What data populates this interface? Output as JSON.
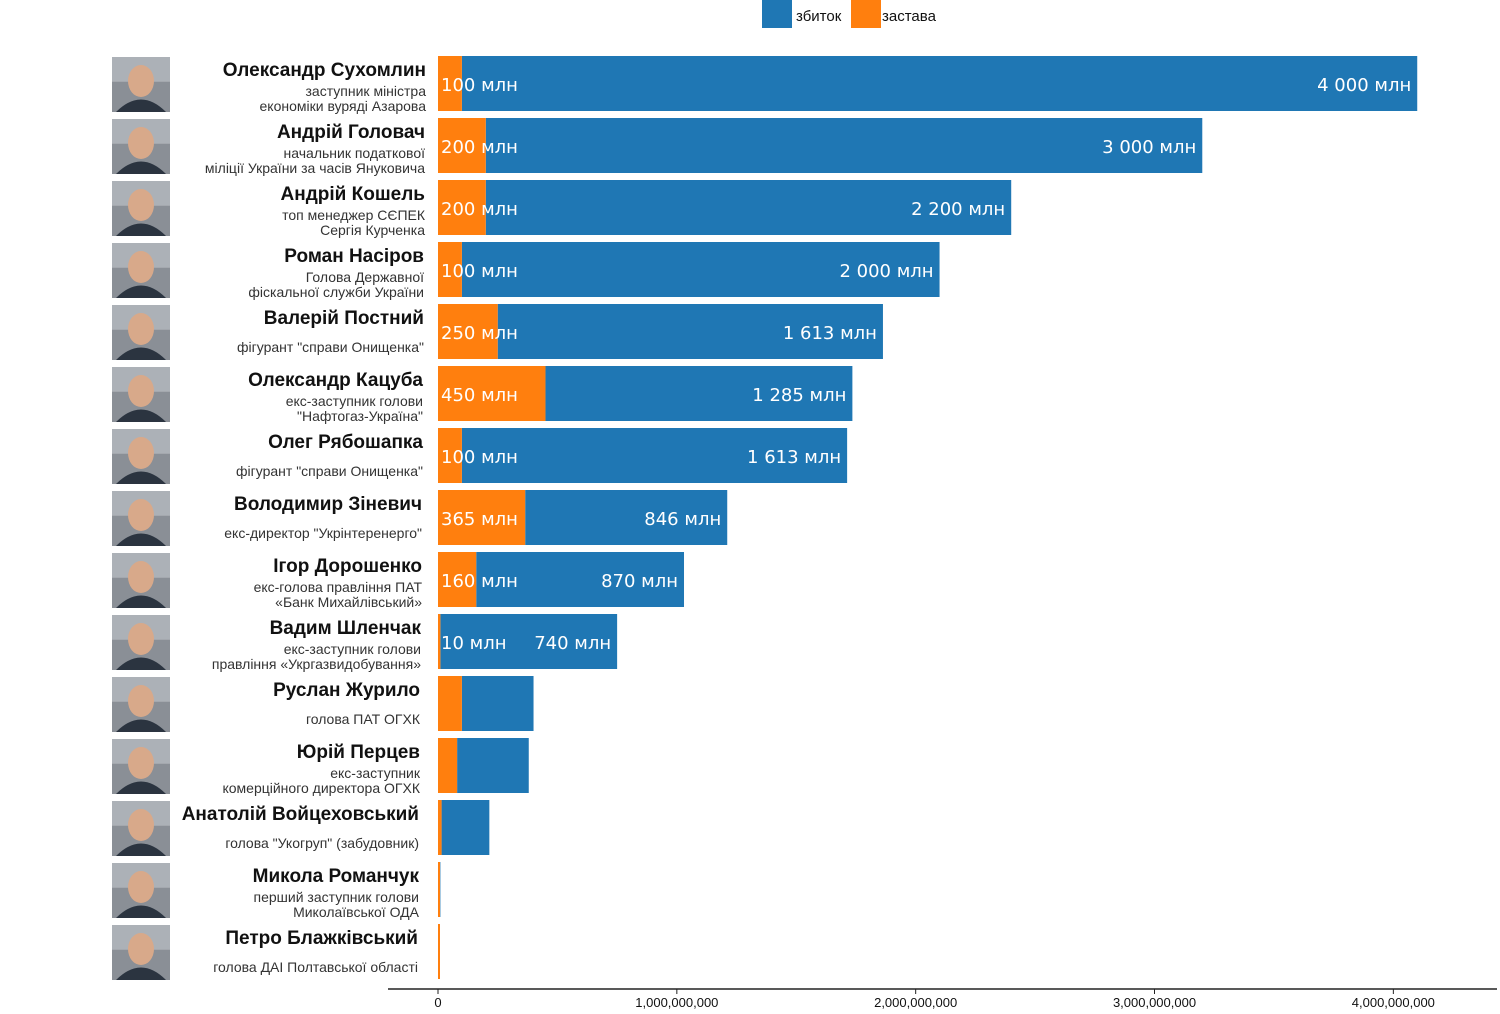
{
  "colors": {
    "loss": "#1f77b4",
    "bail": "#ff7f0e",
    "axis": "#222222"
  },
  "chart_data": {
    "type": "bar",
    "orientation": "horizontal",
    "stacked": true,
    "legend": {
      "placement": "top-center",
      "entries": [
        {
          "name": "збиток",
          "color": "#1f77b4"
        },
        {
          "name": "застава",
          "color": "#ff7f0e"
        }
      ]
    },
    "xlim": [
      0,
      4300000000
    ],
    "xticks": [
      {
        "value": 0,
        "label": "0"
      },
      {
        "value": 1000000000,
        "label": "1,000,000,000"
      },
      {
        "value": 2000000000,
        "label": "2,000,000,000"
      },
      {
        "value": 3000000000,
        "label": "3,000,000,000"
      },
      {
        "value": 4000000000,
        "label": "4,000,000,000"
      }
    ],
    "rows": [
      {
        "name": "Олександр Сухомлин",
        "desc": [
          "заступник міністра",
          "економіки  вуряді Азарова"
        ],
        "bail": 100000000,
        "total": 4100000000,
        "bail_label": "100 млн",
        "loss_label": "4 000 млн"
      },
      {
        "name": "Андрій Головач",
        "desc": [
          "начальник податкової",
          "міліції України за часів Януковича"
        ],
        "bail": 200000000,
        "total": 3200000000,
        "bail_label": "200 млн",
        "loss_label": "3 000 млн"
      },
      {
        "name": "Андрій Кошель",
        "desc": [
          "топ менеджер СЄПЕК",
          "Сергія Курченка"
        ],
        "bail": 200000000,
        "total": 2400000000,
        "bail_label": "200 млн",
        "loss_label": "2 200 млн"
      },
      {
        "name": "Роман Насіров",
        "desc": [
          "Голова Державної",
          "фіскальної служби України"
        ],
        "bail": 100000000,
        "total": 2100000000,
        "bail_label": "100 млн",
        "loss_label": "2 000 млн"
      },
      {
        "name": "Валерій Постний",
        "desc": [
          "фігурант \"справи Онищенка\""
        ],
        "bail": 250000000,
        "total": 1863000000,
        "bail_label": "250 млн",
        "loss_label": "1 613 млн"
      },
      {
        "name": "Олександр Кацуба",
        "desc": [
          "екс-заступник голови",
          "\"Нафтогаз-Україна\""
        ],
        "bail": 450000000,
        "total": 1735000000,
        "bail_label": "450 млн",
        "loss_label": "1 285 млн"
      },
      {
        "name": "Олег Рябошапка",
        "desc": [
          "фігурант \"справи Онищенка\""
        ],
        "bail": 100000000,
        "total": 1713000000,
        "bail_label": "100 млн",
        "loss_label": "1 613 млн"
      },
      {
        "name": "Володимир Зіневич",
        "desc": [
          "екс-директор \"Укрінтеренерго\""
        ],
        "bail": 365000000,
        "total": 1211000000,
        "bail_label": "365 млн",
        "loss_label": "846 млн"
      },
      {
        "name": "Ігор Дорошенко",
        "desc": [
          "екс-голова правління ПАТ",
          "«Банк Михайлівський»"
        ],
        "bail": 160000000,
        "total": 1030000000,
        "bail_label": "160 млн",
        "loss_label": "870 млн"
      },
      {
        "name": "Вадим Шленчак",
        "desc": [
          "екс-заступник голови",
          "правління «Укргазвидобування»"
        ],
        "bail": 10000000,
        "total": 750000000,
        "bail_label": "10 млн",
        "loss_label": "740 млн"
      },
      {
        "name": "Руслан Журило",
        "desc": [
          "голова ПАТ ОГХК"
        ],
        "bail": 100000000,
        "total": 400000000,
        "bail_label": "",
        "loss_label": ""
      },
      {
        "name": "Юрій Перцев",
        "desc": [
          "екс-заступник",
          "комерційного директора ОГХК"
        ],
        "bail": 80000000,
        "total": 380000000,
        "bail_label": "",
        "loss_label": ""
      },
      {
        "name": "Анатолій Войцеховський",
        "desc": [
          "голова \"Укогруп\" (забудовник)"
        ],
        "bail": 15000000,
        "total": 215000000,
        "bail_label": "",
        "loss_label": ""
      },
      {
        "name": "Микола Романчук",
        "desc": [
          "перший заступник голови",
          "Миколаївської ОДА"
        ],
        "bail": 3000000,
        "total": 10000000,
        "bail_label": "",
        "loss_label": ""
      },
      {
        "name": "Петро Блажківський",
        "desc": [
          "голова ДАІ Полтавської області"
        ],
        "bail": 8000000,
        "total": 8000000,
        "bail_label": "",
        "loss_label": ""
      }
    ]
  }
}
